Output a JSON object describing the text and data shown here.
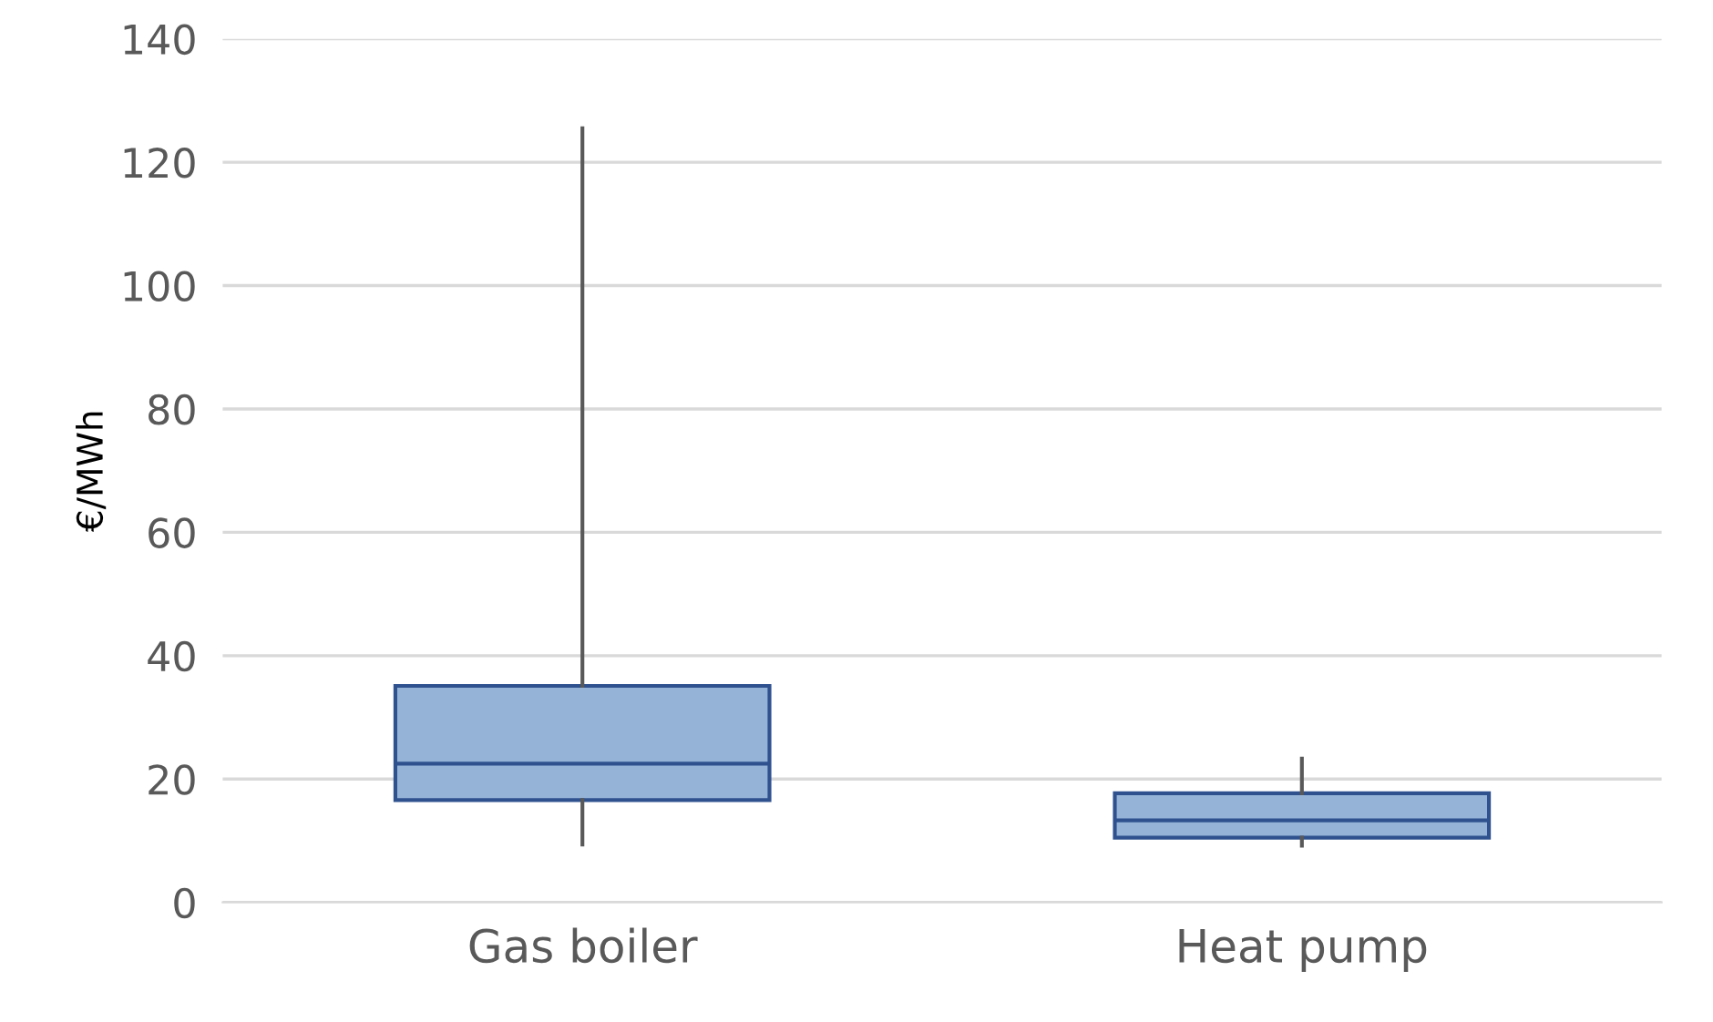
{
  "chart_data": {
    "type": "box",
    "ylabel": "€/MWh",
    "categories": [
      "Gas boiler",
      "Heat pump"
    ],
    "boxes": [
      {
        "low": 9.4,
        "q1": 16.6,
        "median": 22.5,
        "q3": 35.1,
        "high": 125.5
      },
      {
        "low": 9.2,
        "q1": 10.5,
        "median": 13.3,
        "q3": 17.7,
        "high": 23.3
      }
    ],
    "color": "#95b3d7",
    "ylim": [
      0,
      140
    ],
    "yticks": [
      0,
      20,
      40,
      60,
      80,
      100,
      120,
      140
    ],
    "grid": "y",
    "legend": false
  }
}
